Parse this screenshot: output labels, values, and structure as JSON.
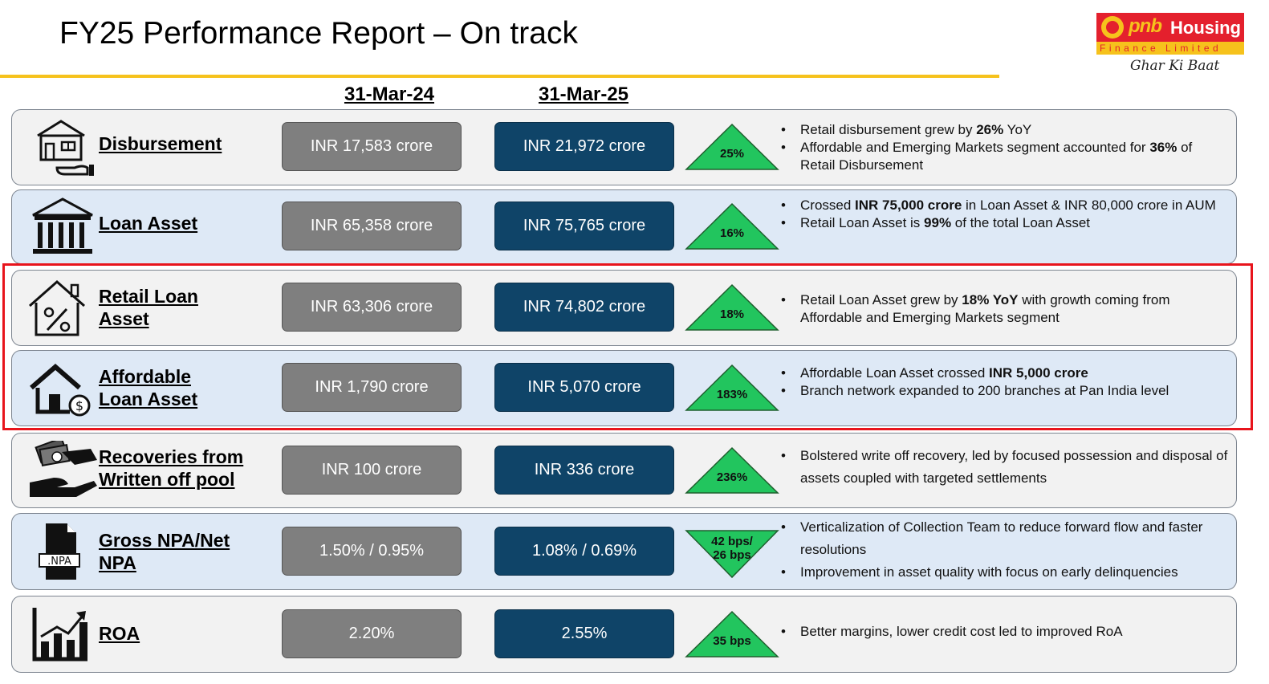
{
  "title": "FY25 Performance Report – On track",
  "logo": {
    "brand": "pnb",
    "name": "Housing",
    "sub": "Finance Limited",
    "tagline": "Ghar Ki Baat"
  },
  "columns": {
    "prev": "31-Mar-24",
    "curr": "31-Mar-25"
  },
  "colors": {
    "accent_yellow": "#F6C21C",
    "prev_box": "#7F7F7F",
    "curr_box": "#0F4468",
    "triangle_green": "#22C55E",
    "highlight_red": "#E8141C"
  },
  "rows": [
    {
      "icon": "house-hand-icon",
      "label": [
        "Disbursement"
      ],
      "prev": "INR 17,583 crore",
      "curr": "INR 21,972 crore",
      "change": [
        "25%"
      ],
      "direction": "up",
      "bullets": [
        [
          {
            "t": "Retail disbursement grew by "
          },
          {
            "t": "26%",
            "b": true
          },
          {
            "t": " YoY"
          }
        ],
        [
          {
            "t": "Affordable and Emerging Markets segment accounted for "
          },
          {
            "t": "36%",
            "b": true
          },
          {
            "t": " of Retail Disbursement"
          }
        ]
      ]
    },
    {
      "icon": "bank-building-icon",
      "label": [
        "Loan Asset"
      ],
      "prev": "INR 65,358 crore",
      "curr": "INR 75,765 crore",
      "change": [
        "16%"
      ],
      "direction": "up",
      "bullets": [
        [
          {
            "t": "Crossed "
          },
          {
            "t": "INR 75,000 crore",
            "b": true
          },
          {
            "t": " in Loan Asset & INR 80,000 crore  in AUM"
          }
        ],
        [
          {
            "t": "Retail Loan Asset is "
          },
          {
            "t": "99%",
            "b": true
          },
          {
            "t": " of the total Loan Asset"
          }
        ]
      ]
    },
    {
      "icon": "house-percent-icon",
      "label": [
        "Retail Loan",
        "Asset"
      ],
      "prev": "INR 63,306 crore",
      "curr": "INR 74,802 crore",
      "change": [
        "18%"
      ],
      "direction": "up",
      "bullets": [
        [
          {
            "t": "Retail Loan Asset grew by "
          },
          {
            "t": "18% YoY",
            "b": true
          },
          {
            "t": " with growth coming from Affordable and Emerging Markets segment"
          }
        ]
      ]
    },
    {
      "icon": "house-dollar-icon",
      "label": [
        "Affordable",
        "Loan Asset"
      ],
      "prev": "INR 1,790 crore",
      "curr": "INR 5,070 crore",
      "change": [
        "183%"
      ],
      "direction": "up",
      "bullets": [
        [
          {
            "t": "Affordable Loan Asset crossed "
          },
          {
            "t": "INR 5,000 crore",
            "b": true
          }
        ],
        [
          {
            "t": "Branch network expanded to 200 branches at Pan India level"
          }
        ]
      ]
    },
    {
      "icon": "money-hands-icon",
      "label": [
        "Recoveries from",
        "Written off pool"
      ],
      "prev": "INR 100 crore",
      "curr": "INR 336 crore",
      "change": [
        "236%"
      ],
      "direction": "up",
      "bullets": [
        [
          {
            "t": "Bolstered write off recovery, led by focused possession and disposal of assets coupled with targeted settlements"
          }
        ]
      ]
    },
    {
      "icon": "npa-document-icon",
      "label": [
        "Gross NPA/Net",
        "NPA"
      ],
      "prev": "1.50% / 0.95%",
      "curr": "1.08% / 0.69%",
      "change": [
        "42 bps/",
        "26 bps"
      ],
      "direction": "down",
      "bullets": [
        [
          {
            "t": "Verticalization of Collection Team to reduce forward flow and faster resolutions"
          }
        ],
        [
          {
            "t": "Improvement in asset quality with focus on early delinquencies"
          }
        ]
      ]
    },
    {
      "icon": "bar-chart-icon",
      "label": [
        "ROA"
      ],
      "prev": "2.20%",
      "curr": "2.55%",
      "change": [
        "35 bps"
      ],
      "direction": "up",
      "bullets": [
        [
          {
            "t": "Better margins, lower credit cost led to improved RoA"
          }
        ]
      ]
    }
  ]
}
